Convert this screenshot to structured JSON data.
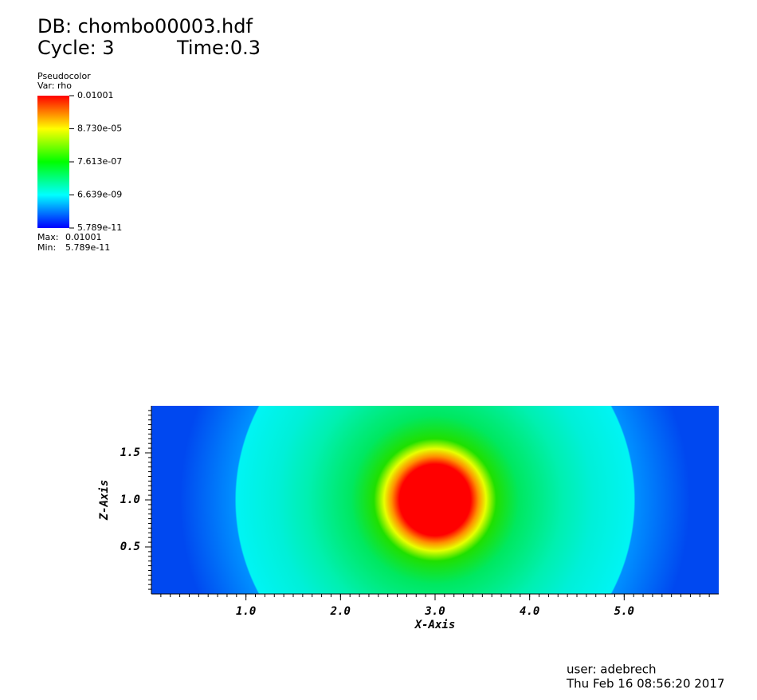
{
  "header": {
    "db": "DB: chombo00003.hdf",
    "cycle": "Cycle: 3",
    "time": "Time:0.3"
  },
  "legend": {
    "plot": "Pseudocolor",
    "var": "Var: rho",
    "ticks": [
      "0.01001",
      "8.730e-05",
      "7.613e-07",
      "6.639e-09",
      "5.789e-11"
    ],
    "max_label": "Max:",
    "max": "0.01001",
    "min_label": "Min:",
    "min": "5.789e-11"
  },
  "chart_data": {
    "type": "pseudocolor",
    "xlabel": "X-Axis",
    "ylabel": "Z-Axis",
    "xlim": [
      0,
      6
    ],
    "ylim": [
      0,
      2
    ],
    "xticks": [
      {
        "value": 1,
        "label": "1.0"
      },
      {
        "value": 2,
        "label": "2.0"
      },
      {
        "value": 3,
        "label": "3.0"
      },
      {
        "value": 4,
        "label": "4.0"
      },
      {
        "value": 5,
        "label": "5.0"
      }
    ],
    "yticks": [
      {
        "value": 0.5,
        "label": "0.5"
      },
      {
        "value": 1,
        "label": "1.0"
      },
      {
        "value": 1.5,
        "label": "1.5"
      }
    ]
  },
  "footer": {
    "user": "user: adebrech",
    "date": "Thu Feb 16 08:56:20 2017"
  }
}
